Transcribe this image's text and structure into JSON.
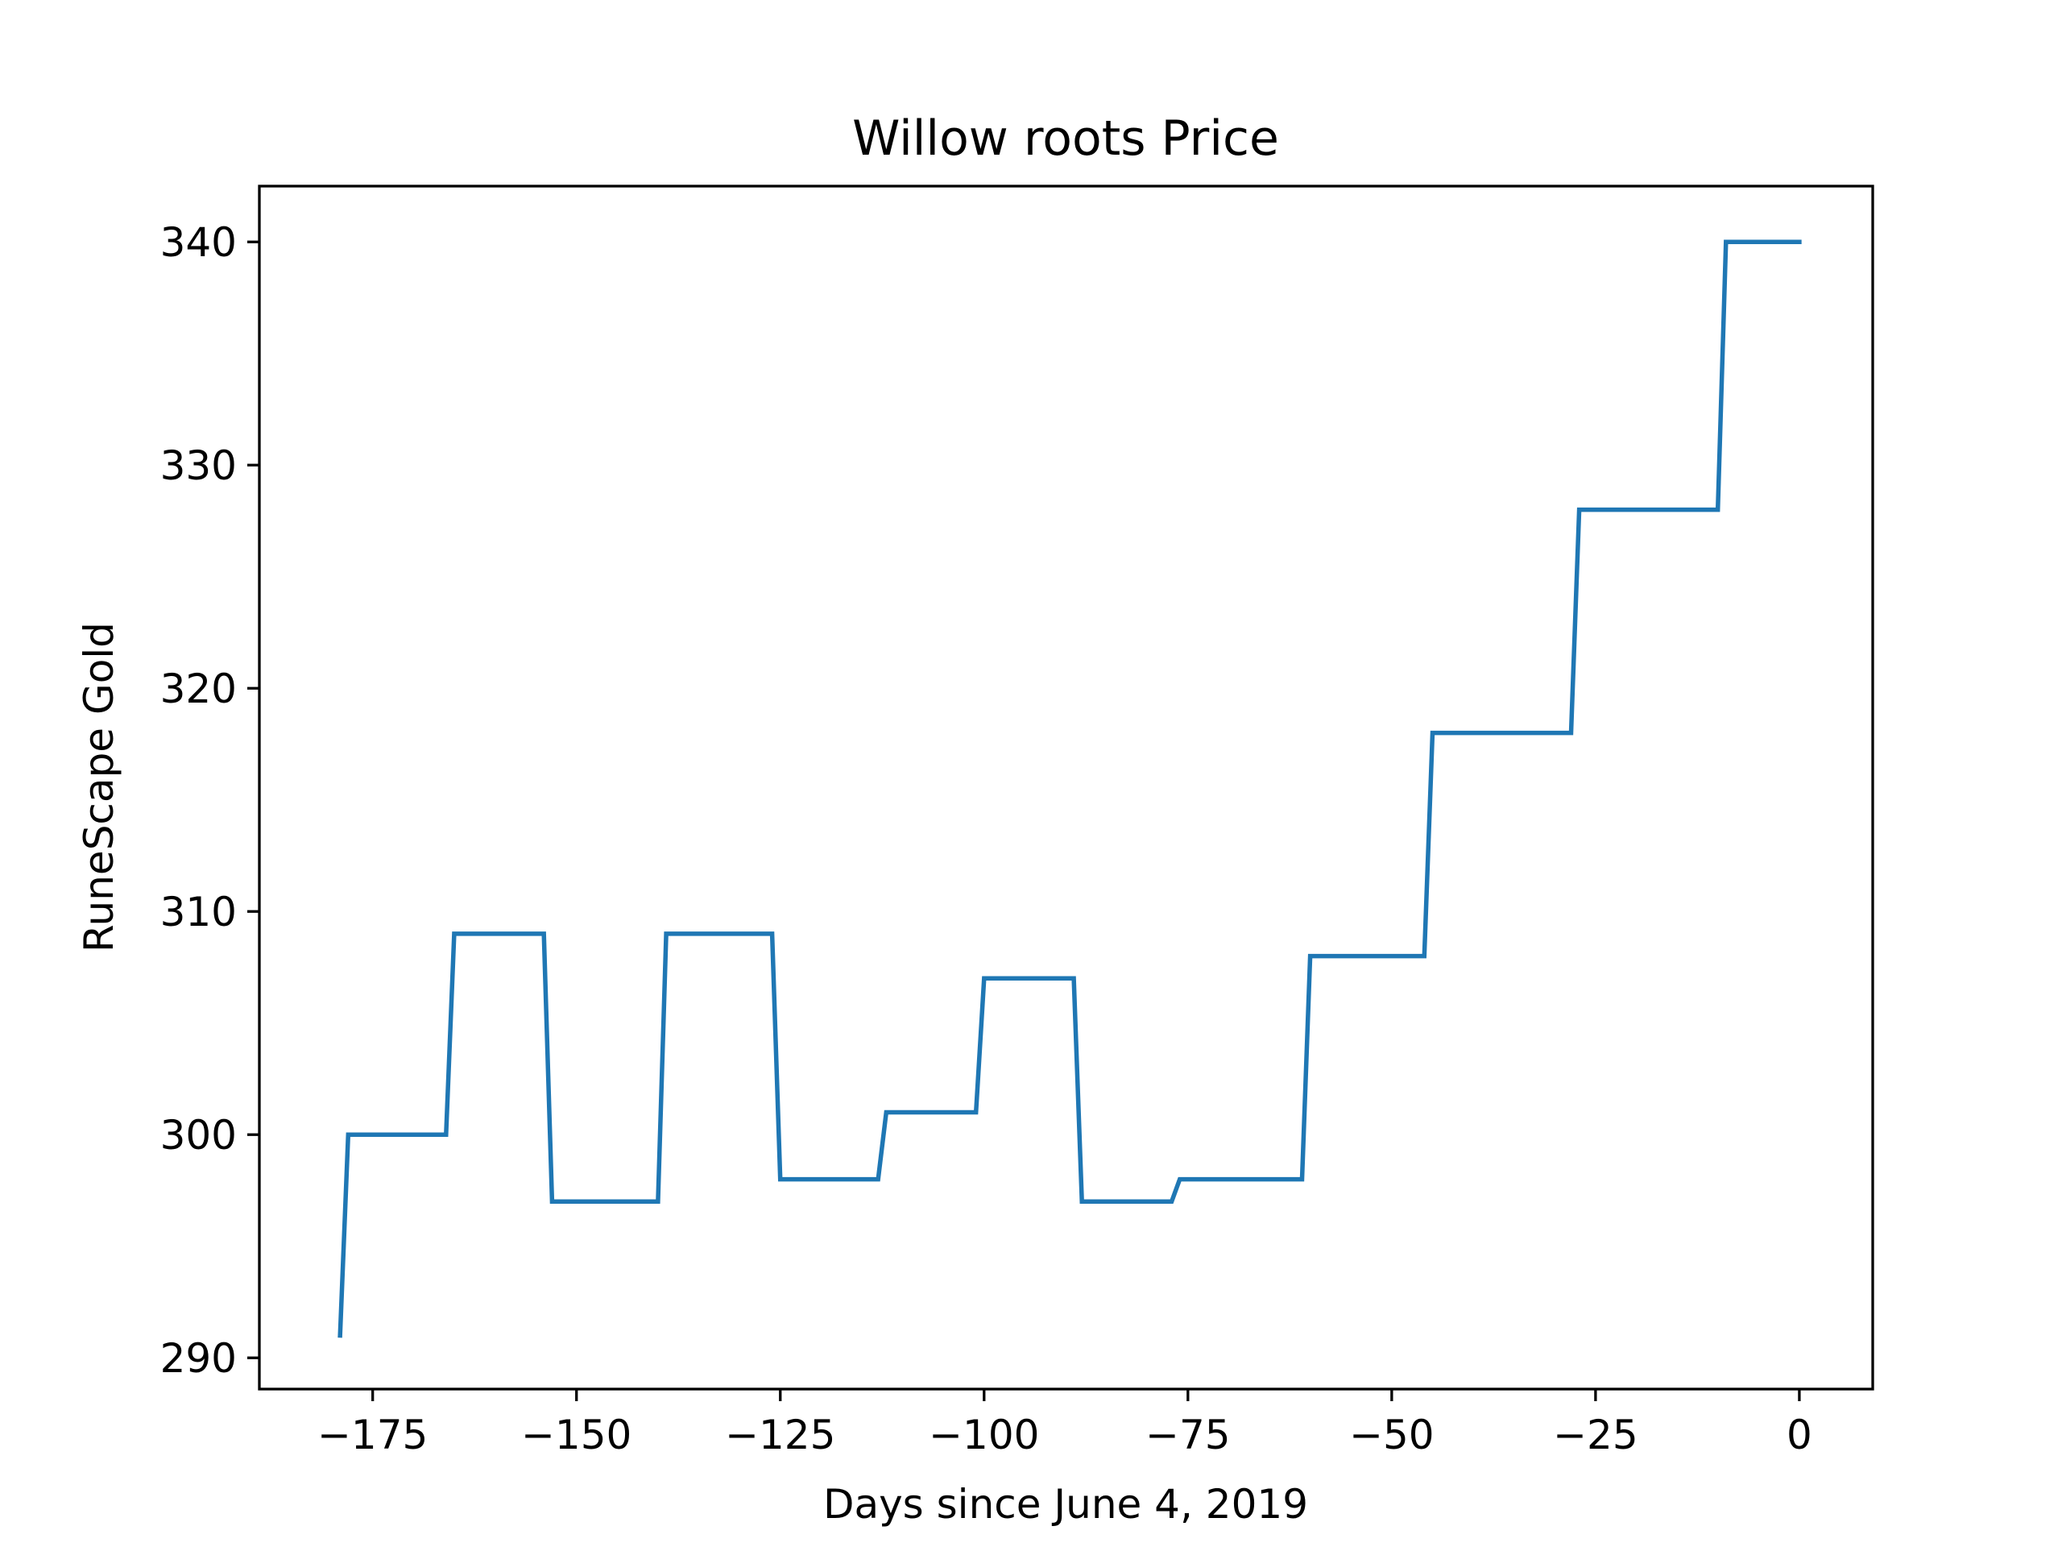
{
  "chart_data": {
    "type": "line",
    "title": "Willow roots Price",
    "xlabel": "Days since June 4, 2019",
    "ylabel": "RuneScape Gold",
    "grid": false,
    "legend": "none",
    "xlim": [
      -188.9,
      9.0
    ],
    "ylim": [
      288.6,
      342.5
    ],
    "xticks": [
      -175,
      -150,
      -125,
      -100,
      -75,
      -50,
      -25,
      0
    ],
    "xtick_labels": [
      "−175",
      "−150",
      "−125",
      "−100",
      "−75",
      "−50",
      "−25",
      "0"
    ],
    "yticks": [
      290,
      300,
      310,
      320,
      330,
      340
    ],
    "ytick_labels": [
      "290",
      "300",
      "310",
      "320",
      "330",
      "340"
    ],
    "series": [
      {
        "color": "#1f77b4",
        "x": [
          -179,
          -178,
          -166,
          -165,
          -154,
          -153,
          -140,
          -139,
          -126,
          -125,
          -113,
          -112,
          -101,
          -100,
          -89,
          -88,
          -77,
          -76,
          -61,
          -60,
          -46,
          -45,
          -28,
          -27,
          -10,
          -9,
          0
        ],
        "y": [
          291,
          300,
          300,
          309,
          309,
          297,
          297,
          309,
          309,
          298,
          298,
          301,
          301,
          307,
          307,
          297,
          297,
          298,
          298,
          308,
          308,
          318,
          318,
          328,
          328,
          340,
          340
        ]
      }
    ]
  }
}
